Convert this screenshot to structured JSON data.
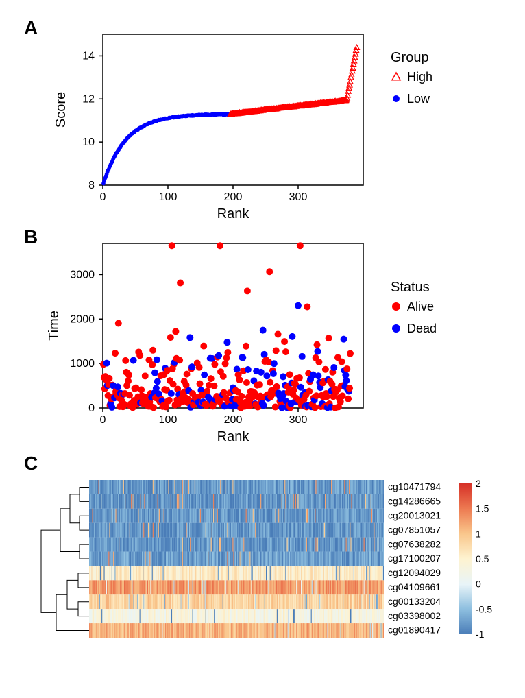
{
  "panelA": {
    "label": "A",
    "type": "scatter",
    "xlabel": "Rank",
    "ylabel": "Score",
    "xlim": [
      0,
      400
    ],
    "ylim": [
      8,
      15
    ],
    "xticks": [
      0,
      100,
      200,
      300
    ],
    "yticks": [
      8,
      10,
      12,
      14
    ],
    "legend": {
      "title": "Group",
      "items": [
        {
          "label": "High",
          "color": "#ff0000",
          "marker": "triangle-open"
        },
        {
          "label": "Low",
          "color": "#0000ff",
          "marker": "circle"
        }
      ]
    },
    "split_rank": 195,
    "colors": {
      "low": "#0000ff",
      "high": "#ff0000"
    },
    "background_color": "#ffffff",
    "marker_size": 4
  },
  "panelB": {
    "label": "B",
    "type": "scatter",
    "xlabel": "Rank",
    "ylabel": "Time",
    "xlim": [
      0,
      400
    ],
    "ylim": [
      0,
      3700
    ],
    "xticks": [
      0,
      100,
      200,
      300
    ],
    "yticks": [
      0,
      1000,
      2000,
      3000
    ],
    "legend": {
      "title": "Status",
      "items": [
        {
          "label": "Alive",
          "color": "#ff0000",
          "marker": "circle"
        },
        {
          "label": "Dead",
          "color": "#0000ff",
          "marker": "circle"
        }
      ]
    },
    "colors": {
      "alive": "#ff0000",
      "dead": "#0000ff"
    },
    "background_color": "#ffffff",
    "marker_size": 5
  },
  "panelC": {
    "label": "C",
    "type": "heatmap",
    "row_labels": [
      "cg10471794",
      "cg14286665",
      "cg20013021",
      "cg07851057",
      "cg07638282",
      "cg17100207",
      "cg12094029",
      "cg04109661",
      "cg00133204",
      "cg03398002",
      "cg01890417"
    ],
    "n_cols": 380,
    "colorbar": {
      "min": -1,
      "max": 2,
      "ticks": [
        -1,
        -0.5,
        0,
        0.5,
        1,
        1.5,
        2
      ],
      "gradient": [
        {
          "stop": 0.0,
          "color": "#4a7db8"
        },
        {
          "stop": 0.17,
          "color": "#8fc0e0"
        },
        {
          "stop": 0.33,
          "color": "#e8f4f8"
        },
        {
          "stop": 0.5,
          "color": "#fef3d0"
        },
        {
          "stop": 0.67,
          "color": "#f9c58a"
        },
        {
          "stop": 0.83,
          "color": "#ed7b52"
        },
        {
          "stop": 1.0,
          "color": "#d63027"
        }
      ]
    },
    "row_means": [
      -0.78,
      -0.82,
      -0.8,
      -0.8,
      -0.8,
      -0.75,
      0.55,
      1.3,
      0.85,
      0.3,
      1.1
    ],
    "dendrogram": {
      "cluster1": [
        0,
        1,
        2,
        3,
        4,
        5
      ],
      "cluster2": [
        6,
        7,
        8,
        9,
        10
      ]
    }
  }
}
